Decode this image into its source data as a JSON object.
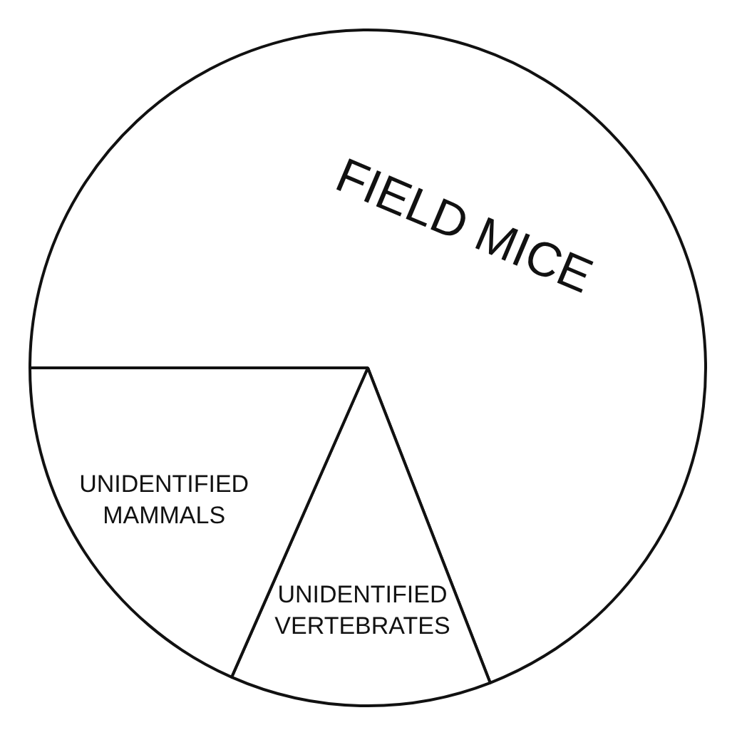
{
  "chart_data": {
    "type": "pie",
    "categories": [
      "FIELD MICE",
      "UNIDENTIFIED VERTEBRATES",
      "UNIDENTIFIED MAMMALS"
    ],
    "values": [
      69.1,
      12.5,
      18.4
    ],
    "colors": [
      "#ffffff",
      "#ffffff",
      "#ffffff"
    ],
    "legend": false
  }
}
